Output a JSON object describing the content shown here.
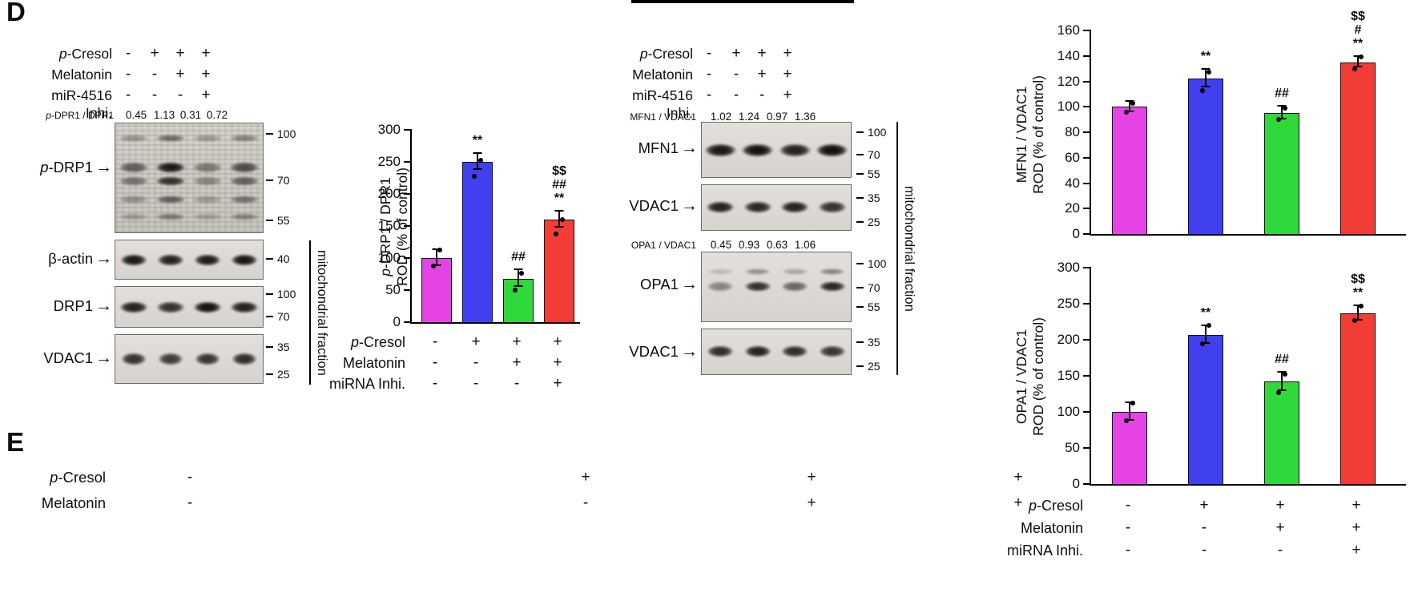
{
  "figure": {
    "panel_d_label": "D",
    "panel_e_label": "E"
  },
  "bar_colors": [
    "#e544e5",
    "#4040ee",
    "#2fd83b",
    "#f23c36"
  ],
  "blot_left": {
    "treatments": [
      {
        "label": "p-Cresol",
        "symbols": [
          "-",
          "+",
          "+",
          "+"
        ]
      },
      {
        "label": "Melatonin",
        "symbols": [
          "-",
          "-",
          "+",
          "+"
        ]
      },
      {
        "label": "miR-4516 Inhi.",
        "symbols": [
          "-",
          "-",
          "-",
          "+"
        ]
      }
    ],
    "ratio_label": "p-DPR1 / DPR1",
    "ratio_values": [
      "0.45",
      "1.13",
      "0.31",
      "0.72"
    ],
    "proteins": [
      "p-DRP1",
      "β-actin",
      "DRP1",
      "VDAC1"
    ],
    "markers": [
      [
        "100",
        "70",
        "55"
      ],
      [
        "40"
      ],
      [
        "100",
        "70"
      ],
      [
        "35",
        "25"
      ]
    ],
    "fraction_label": "mitochondrial fraction"
  },
  "blot_right": {
    "treatments": [
      {
        "label": "p-Cresol",
        "symbols": [
          "-",
          "+",
          "+",
          "+"
        ]
      },
      {
        "label": "Melatonin",
        "symbols": [
          "-",
          "-",
          "+",
          "+"
        ]
      },
      {
        "label": "miR-4516 Inhi.",
        "symbols": [
          "-",
          "-",
          "-",
          "+"
        ]
      }
    ],
    "ratio1_label": "MFN1 / VDAC1",
    "ratio1_values": [
      "1.02",
      "1.24",
      "0.97",
      "1.36"
    ],
    "ratio2_label": "OPA1 / VDAC1",
    "ratio2_values": [
      "0.45",
      "0.93",
      "0.63",
      "1.06"
    ],
    "proteins": [
      "MFN1",
      "VDAC1",
      "OPA1",
      "VDAC1"
    ],
    "markers": [
      [
        "100",
        "70",
        "55"
      ],
      [
        "35",
        "25"
      ],
      [
        "100",
        "70",
        "55"
      ],
      [
        "35",
        "25"
      ]
    ],
    "fraction_label": "mitochondrial fraction"
  },
  "panel_e": {
    "rows": [
      {
        "label": "p-Cresol",
        "symbols": [
          "-",
          "+",
          "+",
          "+"
        ]
      },
      {
        "label": "Melatonin",
        "symbols": [
          "-",
          "-",
          "+",
          "+"
        ]
      }
    ]
  },
  "chart_data": [
    {
      "type": "bar",
      "id": "p-drp1-rod",
      "ylabel": [
        "p-DRP1 / DPR1",
        "ROD (% of control)"
      ],
      "categories": [
        "control",
        "p-Cresol",
        "p-Cresol + Melatonin",
        "p-Cresol + Melatonin + miRNA Inhi."
      ],
      "values": [
        100,
        250,
        68,
        160
      ],
      "errors": [
        13,
        12,
        13,
        12
      ],
      "points": [
        [
          87,
          113
        ],
        [
          228,
          252
        ],
        [
          50,
          76
        ],
        [
          137,
          160
        ]
      ],
      "annotations": [
        [],
        [
          "**"
        ],
        [
          "##"
        ],
        [
          "$$",
          "##",
          "**"
        ]
      ],
      "ylim": [
        0,
        300
      ],
      "yticks": [
        0,
        50,
        100,
        150,
        200,
        250,
        300
      ],
      "grid": false,
      "x_matrix": [
        {
          "label": "p-Cresol",
          "symbols": [
            "-",
            "+",
            "+",
            "+"
          ]
        },
        {
          "label": "Melatonin",
          "symbols": [
            "-",
            "-",
            "+",
            "+"
          ]
        },
        {
          "label": "miRNA Inhi.",
          "symbols": [
            "-",
            "-",
            "-",
            "+"
          ]
        }
      ]
    },
    {
      "type": "bar",
      "id": "mfn1-rod",
      "ylabel": [
        "MFN1 / VDAC1",
        "ROD (% of control)"
      ],
      "categories": [
        "control",
        "p-Cresol",
        "p-Cresol + Melatonin",
        "p-Cresol + Melatonin + miRNA Inhi."
      ],
      "values": [
        100,
        122,
        95,
        135
      ],
      "errors": [
        4,
        7,
        5,
        4
      ],
      "points": [
        [
          96,
          103
        ],
        [
          113,
          127
        ],
        [
          90,
          99
        ],
        [
          130,
          139
        ]
      ],
      "annotations": [
        [],
        [
          "**"
        ],
        [
          "##"
        ],
        [
          "$$",
          "#",
          "**"
        ]
      ],
      "ylim": [
        0,
        160
      ],
      "yticks": [
        0,
        20,
        40,
        60,
        80,
        100,
        120,
        140,
        160
      ],
      "grid": false
    },
    {
      "type": "bar",
      "id": "opa1-rod",
      "ylabel": [
        "OPA1 / VDAC1",
        "ROD (% of control)"
      ],
      "categories": [
        "control",
        "p-Cresol",
        "p-Cresol + Melatonin",
        "p-Cresol + Melatonin + miRNA Inhi."
      ],
      "values": [
        100,
        207,
        142,
        237
      ],
      "errors": [
        12,
        12,
        13,
        10
      ],
      "points": [
        [
          88,
          112
        ],
        [
          195,
          220
        ],
        [
          127,
          152
        ],
        [
          227,
          247
        ]
      ],
      "annotations": [
        [],
        [
          "**"
        ],
        [
          "##"
        ],
        [
          "$$",
          "**"
        ]
      ],
      "ylim": [
        0,
        300
      ],
      "yticks": [
        0,
        50,
        100,
        150,
        200,
        250,
        300
      ],
      "grid": false,
      "x_matrix": [
        {
          "label": "p-Cresol",
          "symbols": [
            "-",
            "+",
            "+",
            "+"
          ]
        },
        {
          "label": "Melatonin",
          "symbols": [
            "-",
            "-",
            "+",
            "+"
          ]
        },
        {
          "label": "miRNA Inhi.",
          "symbols": [
            "-",
            "-",
            "-",
            "+"
          ]
        }
      ]
    }
  ]
}
